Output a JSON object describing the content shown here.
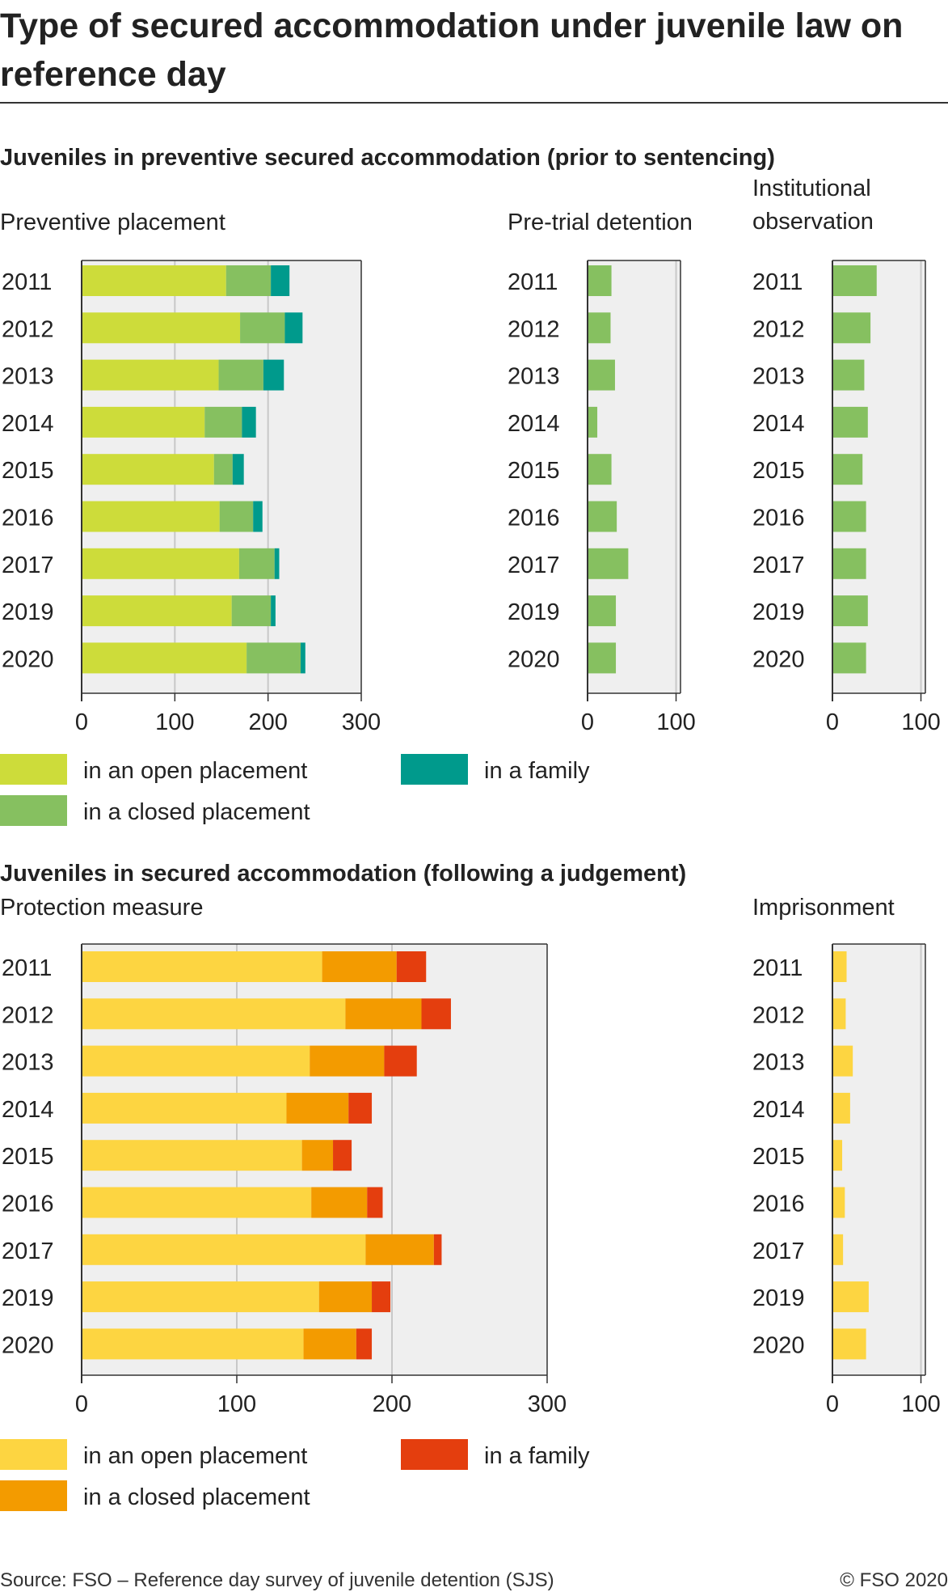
{
  "title": "Type of secured accommodation under juvenile law on reference day",
  "source": "Source: FSO – Reference day survey of juvenile detention (SJS)",
  "copyright": "© FSO 2020",
  "colors": {
    "panel_bg": "#efefef",
    "grid": "#c8c8c8",
    "frame": "#333333",
    "preventive_open": "#cddc3a",
    "preventive_closed": "#86c060",
    "preventive_family": "#009a8c",
    "sentenced_open": "#fdd541",
    "sentenced_closed": "#f39b00",
    "sentenced_family": "#e43e0e"
  },
  "chart_data": [
    {
      "type": "bar",
      "orientation": "horizontal",
      "stacked": true,
      "section": "Juveniles in preventive secured accommodation (prior to sentencing)",
      "title": "Preventive placement",
      "categories": [
        "2011",
        "2012",
        "2013",
        "2014",
        "2015",
        "2016",
        "2017",
        "2019",
        "2020"
      ],
      "series": [
        {
          "name": "in an open placement",
          "values": [
            155,
            170,
            147,
            132,
            142,
            148,
            169,
            161,
            177
          ]
        },
        {
          "name": "in a closed placement",
          "values": [
            48,
            48,
            48,
            40,
            20,
            36,
            38,
            42,
            58
          ]
        },
        {
          "name": "in a family",
          "values": [
            20,
            19,
            22,
            15,
            12,
            10,
            5,
            5,
            5
          ]
        }
      ],
      "xlim": [
        0,
        300
      ],
      "xticks": [
        0,
        100,
        200,
        300
      ],
      "grid": true
    },
    {
      "type": "bar",
      "orientation": "horizontal",
      "section": "Juveniles in preventive secured accommodation (prior to sentencing)",
      "title": "Pre-trial detention",
      "categories": [
        "2011",
        "2012",
        "2013",
        "2014",
        "2015",
        "2016",
        "2017",
        "2019",
        "2020"
      ],
      "series": [
        {
          "name": "in a closed placement",
          "values": [
            27,
            26,
            31,
            11,
            27,
            33,
            46,
            32,
            32
          ]
        }
      ],
      "xlim": [
        0,
        105
      ],
      "xticks": [
        0,
        100
      ],
      "grid": true
    },
    {
      "type": "bar",
      "orientation": "horizontal",
      "section": "Juveniles in preventive secured accommodation (prior to sentencing)",
      "title": "Institutional observation",
      "categories": [
        "2011",
        "2012",
        "2013",
        "2014",
        "2015",
        "2016",
        "2017",
        "2019",
        "2020"
      ],
      "series": [
        {
          "name": "in a closed placement",
          "values": [
            50,
            43,
            36,
            40,
            34,
            38,
            38,
            40,
            38
          ]
        }
      ],
      "xlim": [
        0,
        105
      ],
      "xticks": [
        0,
        100
      ],
      "grid": true
    },
    {
      "type": "bar",
      "orientation": "horizontal",
      "stacked": true,
      "section": "Juveniles in secured accommodation (following a judgement)",
      "title": "Protection measure",
      "categories": [
        "2011",
        "2012",
        "2013",
        "2014",
        "2015",
        "2016",
        "2017",
        "2019",
        "2020"
      ],
      "series": [
        {
          "name": "in an open placement",
          "values": [
            155,
            170,
            147,
            132,
            142,
            148,
            183,
            153,
            143
          ]
        },
        {
          "name": "in a closed placement",
          "values": [
            48,
            49,
            48,
            40,
            20,
            36,
            44,
            34,
            34
          ]
        },
        {
          "name": "in a family",
          "values": [
            19,
            19,
            21,
            15,
            12,
            10,
            5,
            12,
            10
          ]
        }
      ],
      "xlim": [
        0,
        300
      ],
      "xticks": [
        0,
        100,
        200,
        300
      ],
      "grid": true
    },
    {
      "type": "bar",
      "orientation": "horizontal",
      "section": "Juveniles in secured accommodation (following a judgement)",
      "title": "Imprisonment",
      "categories": [
        "2011",
        "2012",
        "2013",
        "2014",
        "2015",
        "2016",
        "2017",
        "2019",
        "2020"
      ],
      "series": [
        {
          "name": "in an open placement",
          "values": [
            16,
            15,
            23,
            20,
            11,
            14,
            12,
            41,
            38
          ]
        }
      ],
      "xlim": [
        0,
        105
      ],
      "xticks": [
        0,
        100
      ],
      "grid": true
    }
  ],
  "sections": [
    {
      "heading": "Juveniles in preventive secured accommodation (prior to sentencing)"
    },
    {
      "heading": "Juveniles in secured accommodation (following a judgement)"
    }
  ],
  "legends": [
    {
      "items": [
        {
          "label": "in an open placement",
          "color_key": "preventive_open"
        },
        {
          "label": "in a closed placement",
          "color_key": "preventive_closed"
        },
        {
          "label": "in a family",
          "color_key": "preventive_family"
        }
      ]
    },
    {
      "items": [
        {
          "label": "in an open placement",
          "color_key": "sentenced_open"
        },
        {
          "label": "in a closed placement",
          "color_key": "sentenced_closed"
        },
        {
          "label": "in a family",
          "color_key": "sentenced_family"
        }
      ]
    }
  ]
}
